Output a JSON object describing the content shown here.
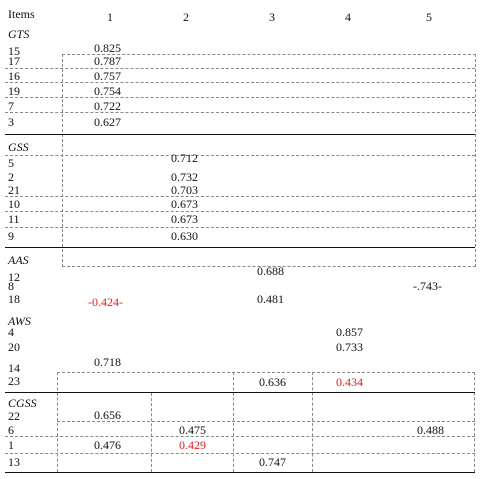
{
  "header": {
    "items": "Items",
    "c1": "1",
    "c2": "2",
    "c3": "3",
    "c4": "4",
    "c5": "5"
  },
  "groups": {
    "gts": "GTS",
    "gss": "GSS",
    "aas": "AAS",
    "aws": "AWS",
    "cgss": "CGSS"
  },
  "gts_rows": [
    {
      "item": "15",
      "v": "0.825"
    },
    {
      "item": "17",
      "v": "0.787"
    },
    {
      "item": "16",
      "v": "0.757"
    },
    {
      "item": "19",
      "v": "0.754"
    },
    {
      "item": "7",
      "v": "0.722"
    },
    {
      "item": "3",
      "v": "0.627"
    }
  ],
  "gss_rows": [
    {
      "item": "5",
      "v": "0.712"
    },
    {
      "item": "2",
      "v": "0.732"
    },
    {
      "item": "21",
      "v": "0.703"
    },
    {
      "item": "10",
      "v": "0.673"
    },
    {
      "item": "11",
      "v": "0.673"
    },
    {
      "item": "9",
      "v": "0.630"
    }
  ],
  "aas_rows": [
    {
      "item": "12",
      "c3": "0.688"
    },
    {
      "item": "8",
      "c5": "-.743-"
    },
    {
      "item": "18",
      "c1": "-0.424-",
      "c3": "0.481"
    }
  ],
  "aws_rows": [
    {
      "item": "4",
      "c4": "0.857"
    },
    {
      "item": "20",
      "c4": "0.733"
    },
    {
      "item": "14",
      "c1": "0.718"
    },
    {
      "item": "23",
      "c3": "0.636",
      "c4": "0.434"
    }
  ],
  "cgss_rows": [
    {
      "item": "22",
      "c1": "0.656"
    },
    {
      "item": "6",
      "c2": "0.475",
      "c5": "0.488"
    },
    {
      "item": "1",
      "c1": "0.476",
      "c2": "0.429"
    },
    {
      "item": "13",
      "c3": "0.747"
    }
  ],
  "colors": {
    "highlight": "#e0201a",
    "text": "#111111",
    "grid": "#888888"
  }
}
